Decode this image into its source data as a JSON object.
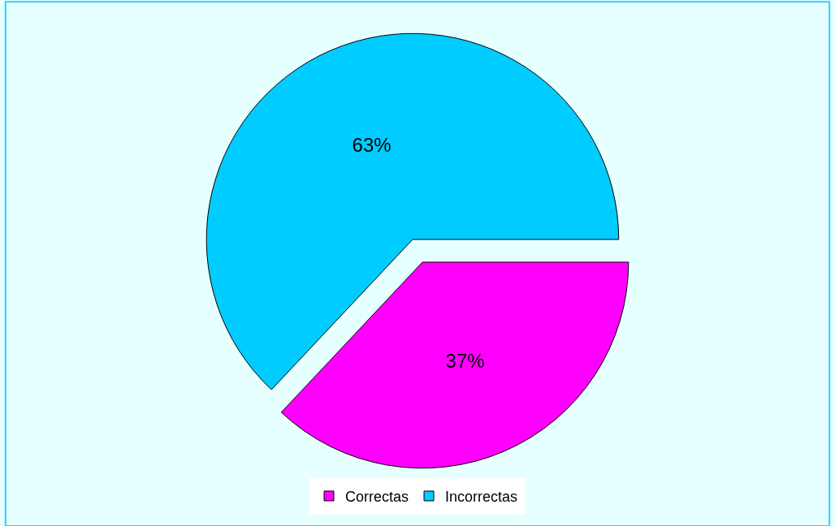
{
  "chart_data": {
    "type": "pie",
    "categories": [
      "Correctas",
      "Incorrectas"
    ],
    "values": [
      37,
      63
    ],
    "colors": [
      "#ff00ff",
      "#00ccff"
    ],
    "value_labels": [
      "37%",
      "63%"
    ],
    "legend": "bottom"
  }
}
